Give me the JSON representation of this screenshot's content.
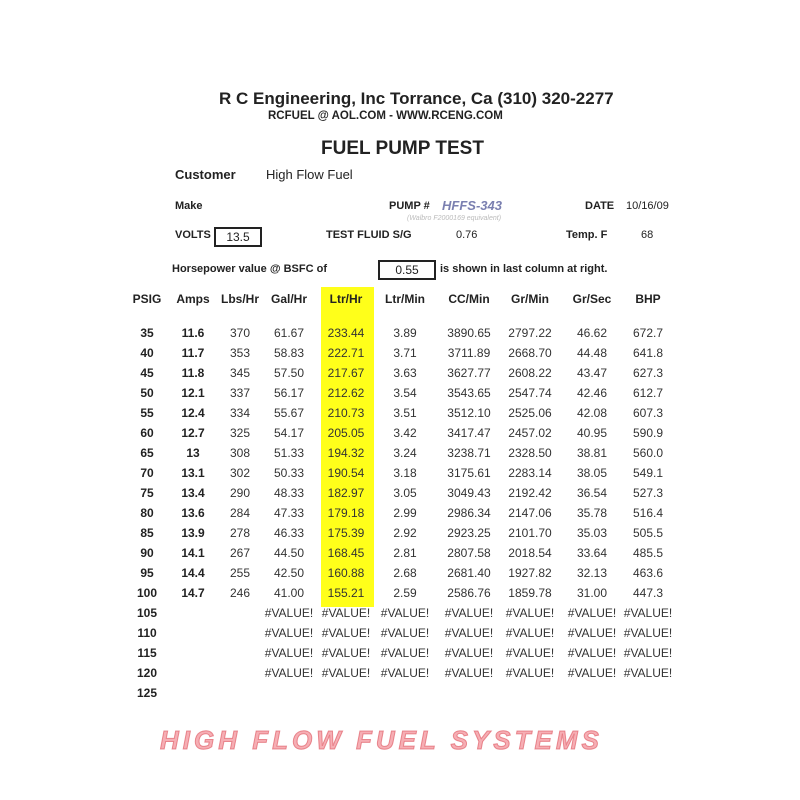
{
  "header": {
    "company": "R C Engineering, Inc  Torrance,  Ca  (310) 320-2277",
    "contact": "RCFUEL @ AOL.COM -  WWW.RCENG.COM",
    "title": "FUEL PUMP TEST"
  },
  "info": {
    "customer_label": "Customer",
    "customer": "High Flow Fuel",
    "make_label": "Make",
    "pump_label": "PUMP #",
    "pump": "HFFS-343",
    "pump_note": "(Walbro F2000169 equivalent)",
    "date_label": "DATE",
    "date": "10/16/09",
    "volts_label": "VOLTS",
    "volts": "13.5",
    "fluid_label": "TEST FLUID  S/G",
    "fluid_sg": "0.76",
    "temp_label": "Temp.  F",
    "temp": "68",
    "hp_label": "Horsepower value @  BSFC of",
    "bsfc": "0.55",
    "hp_note": "is shown in last column at right."
  },
  "watermark": "HIGH FLOW FUEL SYSTEMS",
  "colors": {
    "highlight": "#ffff1a",
    "pump": "#7a7fb0",
    "watermark": "#f07882"
  },
  "table": {
    "headers": [
      "PSIG",
      "Amps",
      "Lbs/Hr",
      "Gal/Hr",
      "Ltr/Hr",
      "Ltr/Min",
      "CC/Min",
      "Gr/Min",
      "Gr/Sec",
      "BHP"
    ],
    "rows": [
      [
        "35",
        "11.6",
        "370",
        "61.67",
        "233.44",
        "3.89",
        "3890.65",
        "2797.22",
        "46.62",
        "672.7"
      ],
      [
        "40",
        "11.7",
        "353",
        "58.83",
        "222.71",
        "3.71",
        "3711.89",
        "2668.70",
        "44.48",
        "641.8"
      ],
      [
        "45",
        "11.8",
        "345",
        "57.50",
        "217.67",
        "3.63",
        "3627.77",
        "2608.22",
        "43.47",
        "627.3"
      ],
      [
        "50",
        "12.1",
        "337",
        "56.17",
        "212.62",
        "3.54",
        "3543.65",
        "2547.74",
        "42.46",
        "612.7"
      ],
      [
        "55",
        "12.4",
        "334",
        "55.67",
        "210.73",
        "3.51",
        "3512.10",
        "2525.06",
        "42.08",
        "607.3"
      ],
      [
        "60",
        "12.7",
        "325",
        "54.17",
        "205.05",
        "3.42",
        "3417.47",
        "2457.02",
        "40.95",
        "590.9"
      ],
      [
        "65",
        "13",
        "308",
        "51.33",
        "194.32",
        "3.24",
        "3238.71",
        "2328.50",
        "38.81",
        "560.0"
      ],
      [
        "70",
        "13.1",
        "302",
        "50.33",
        "190.54",
        "3.18",
        "3175.61",
        "2283.14",
        "38.05",
        "549.1"
      ],
      [
        "75",
        "13.4",
        "290",
        "48.33",
        "182.97",
        "3.05",
        "3049.43",
        "2192.42",
        "36.54",
        "527.3"
      ],
      [
        "80",
        "13.6",
        "284",
        "47.33",
        "179.18",
        "2.99",
        "2986.34",
        "2147.06",
        "35.78",
        "516.4"
      ],
      [
        "85",
        "13.9",
        "278",
        "46.33",
        "175.39",
        "2.92",
        "2923.25",
        "2101.70",
        "35.03",
        "505.5"
      ],
      [
        "90",
        "14.1",
        "267",
        "44.50",
        "168.45",
        "2.81",
        "2807.58",
        "2018.54",
        "33.64",
        "485.5"
      ],
      [
        "95",
        "14.4",
        "255",
        "42.50",
        "160.88",
        "2.68",
        "2681.40",
        "1927.82",
        "32.13",
        "463.6"
      ],
      [
        "100",
        "14.7",
        "246",
        "41.00",
        "155.21",
        "2.59",
        "2586.76",
        "1859.78",
        "31.00",
        "447.3"
      ],
      [
        "105",
        "",
        "",
        "#VALUE!",
        "#VALUE!",
        "#VALUE!",
        "#VALUE!",
        "#VALUE!",
        "#VALUE!",
        "#VALUE!"
      ],
      [
        "110",
        "",
        "",
        "#VALUE!",
        "#VALUE!",
        "#VALUE!",
        "#VALUE!",
        "#VALUE!",
        "#VALUE!",
        "#VALUE!"
      ],
      [
        "115",
        "",
        "",
        "#VALUE!",
        "#VALUE!",
        "#VALUE!",
        "#VALUE!",
        "#VALUE!",
        "#VALUE!",
        "#VALUE!"
      ],
      [
        "120",
        "",
        "",
        "#VALUE!",
        "#VALUE!",
        "#VALUE!",
        "#VALUE!",
        "#VALUE!",
        "#VALUE!",
        "#VALUE!"
      ],
      [
        "125",
        "",
        "",
        "",
        "",
        "",
        "",
        "",
        "",
        ""
      ]
    ]
  }
}
